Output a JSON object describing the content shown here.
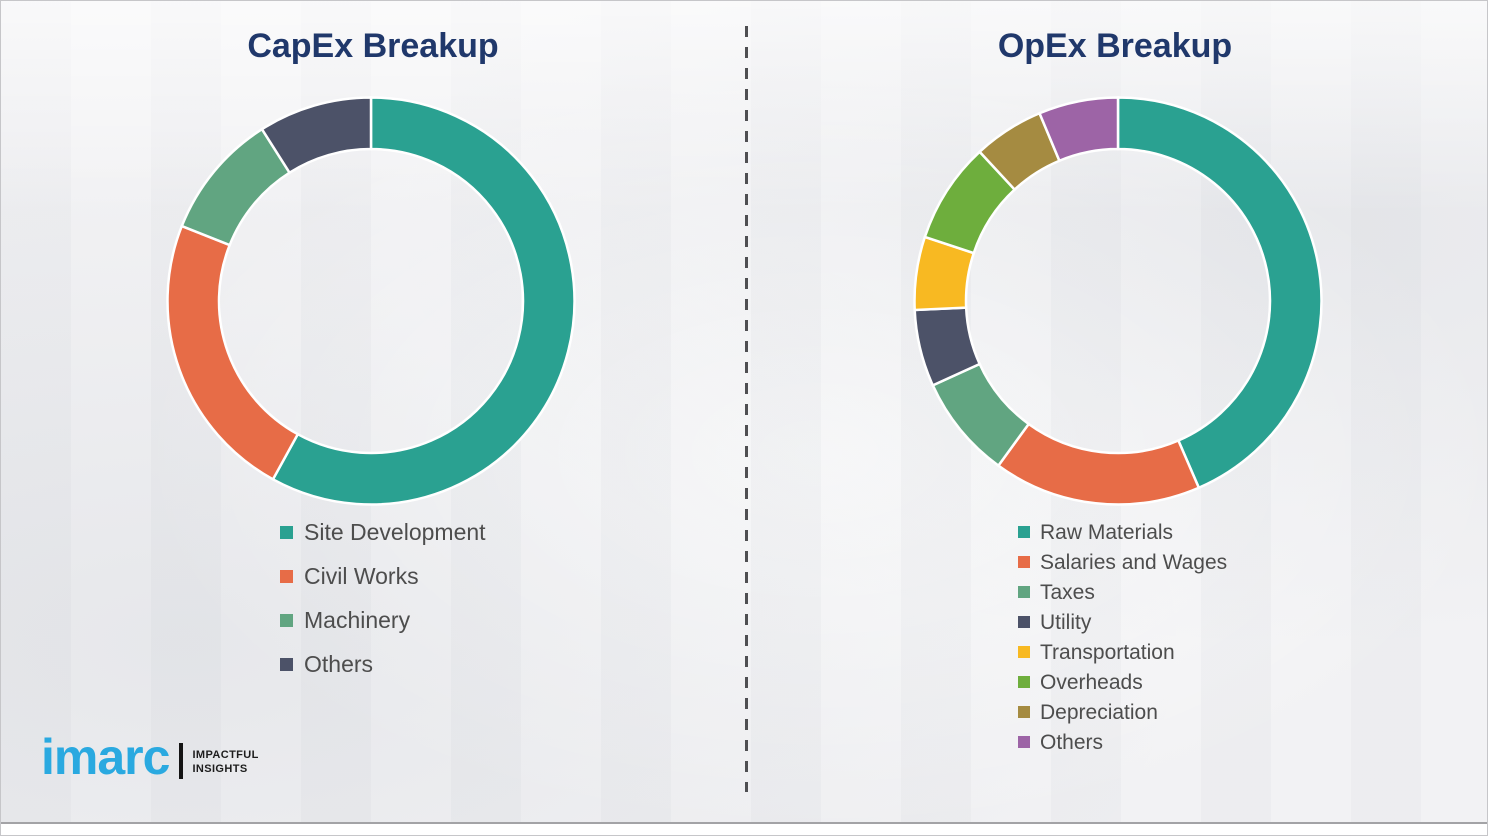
{
  "page": {
    "background_color": "#f2f2f4",
    "divider_style": "vertical-dashed",
    "accent_title_color": "#20386b"
  },
  "logo": {
    "brand": "imarc",
    "brand_color": "#2aa9e0",
    "tagline_line1": "IMPACTFUL",
    "tagline_line2": "INSIGHTS"
  },
  "chart_data": [
    {
      "type": "pie",
      "variant": "donut",
      "title": "CapEx Breakup",
      "legend_position": "below-left",
      "start_angle_deg": 0,
      "direction": "clockwise",
      "categories": [
        "Site Development",
        "Civil Works",
        "Machinery",
        "Others"
      ],
      "values": [
        58,
        23,
        10,
        9
      ],
      "unit": "percent",
      "colors": [
        "#2aa191",
        "#e76c47",
        "#61a581",
        "#4c5268"
      ]
    },
    {
      "type": "pie",
      "variant": "donut",
      "title": "OpEx Breakup",
      "legend_position": "below-left",
      "start_angle_deg": 0,
      "direction": "clockwise",
      "categories": [
        "Raw Materials",
        "Salaries and Wages",
        "Taxes",
        "Utility",
        "Transportation",
        "Overheads",
        "Depreciation",
        "Others"
      ],
      "values": [
        43.5,
        16.5,
        8.2,
        6.1,
        5.8,
        8.0,
        5.6,
        6.3
      ],
      "unit": "percent",
      "colors": [
        "#2aa191",
        "#e76c47",
        "#61a581",
        "#4c5268",
        "#f8b922",
        "#6eae3d",
        "#a58b41",
        "#9d64a6"
      ]
    }
  ]
}
